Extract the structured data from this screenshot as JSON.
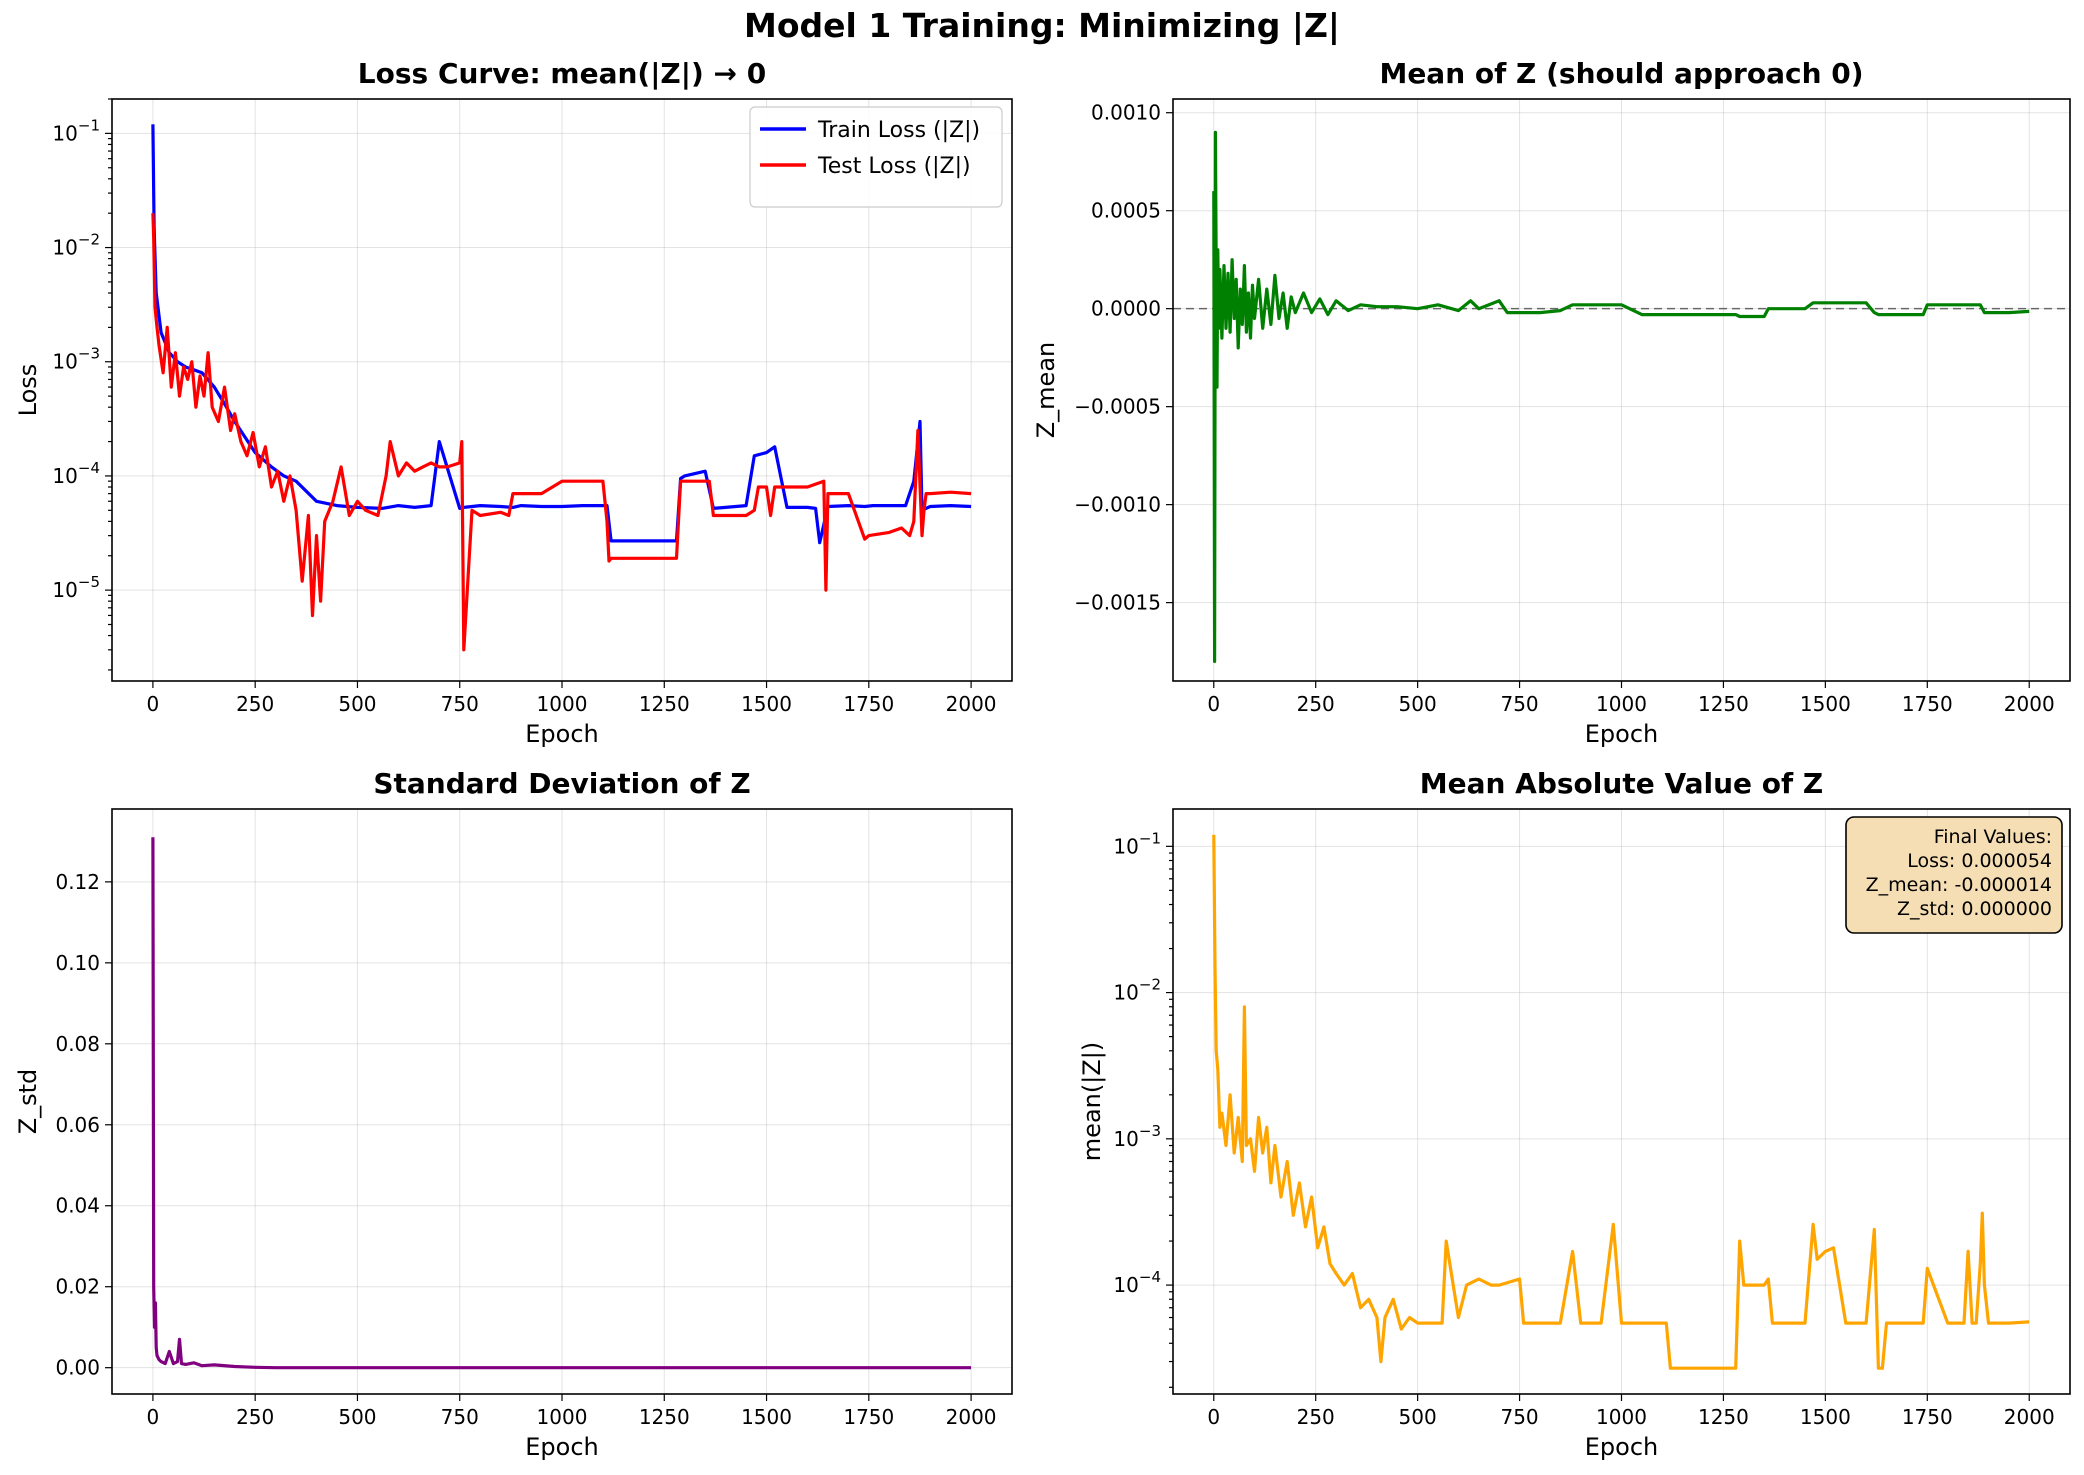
{
  "figure": {
    "title": "Model 1 Training: Minimizing |Z|"
  },
  "chart_data": [
    {
      "id": "loss",
      "type": "line",
      "title": "Loss Curve: mean(|Z|) → 0",
      "xlabel": "Epoch",
      "ylabel": "Loss",
      "yscale": "log",
      "xlim": [
        -100,
        2100
      ],
      "ylim": [
        1.6e-06,
        0.2
      ],
      "xticks": [
        0,
        250,
        500,
        750,
        1000,
        1250,
        1500,
        1750,
        2000
      ],
      "yticks": [
        1e-05,
        0.0001,
        0.001,
        0.01,
        0.1
      ],
      "ytick_labels": [
        [
          "10",
          "−5"
        ],
        [
          "10",
          "−4"
        ],
        [
          "10",
          "−3"
        ],
        [
          "10",
          "−2"
        ],
        [
          "10",
          "−1"
        ]
      ],
      "grid": true,
      "legend": "upper right",
      "series": [
        {
          "name": "Train Loss (|Z|)",
          "color": "#0000ff",
          "x": [
            0,
            3,
            8,
            20,
            40,
            60,
            80,
            100,
            120,
            150,
            180,
            200,
            250,
            290,
            320,
            350,
            400,
            450,
            500,
            560,
            600,
            640,
            680,
            700,
            750,
            760,
            800,
            850,
            880,
            900,
            950,
            1000,
            1050,
            1110,
            1120,
            1200,
            1280,
            1290,
            1300,
            1350,
            1370,
            1400,
            1450,
            1470,
            1500,
            1520,
            1550,
            1600,
            1620,
            1630,
            1650,
            1700,
            1740,
            1760,
            1800,
            1840,
            1860,
            1875,
            1880,
            1900,
            1950,
            2000
          ],
          "y": [
            0.12,
            0.015,
            0.004,
            0.0018,
            0.0012,
            0.001,
            0.0009,
            0.00085,
            0.0008,
            0.0006,
            0.0004,
            0.0003,
            0.00016,
            0.00012,
            0.0001,
            9e-05,
            6e-05,
            5.5e-05,
            5.3e-05,
            5.2e-05,
            5.5e-05,
            5.3e-05,
            5.5e-05,
            0.0002,
            5.2e-05,
            5.3e-05,
            5.5e-05,
            5.4e-05,
            5.3e-05,
            5.5e-05,
            5.4e-05,
            5.4e-05,
            5.5e-05,
            5.5e-05,
            2.7e-05,
            2.7e-05,
            2.7e-05,
            9.5e-05,
            0.0001,
            0.00011,
            5.2e-05,
            5.3e-05,
            5.5e-05,
            0.00015,
            0.00016,
            0.00018,
            5.3e-05,
            5.3e-05,
            5.2e-05,
            2.6e-05,
            5.4e-05,
            5.5e-05,
            5.4e-05,
            5.5e-05,
            5.5e-05,
            5.5e-05,
            9e-05,
            0.0003,
            5e-05,
            5.4e-05,
            5.5e-05,
            5.4e-05
          ]
        },
        {
          "name": "Test Loss (|Z|)",
          "color": "#ff0000",
          "x": [
            0,
            2,
            5,
            10,
            15,
            25,
            35,
            45,
            55,
            65,
            75,
            85,
            95,
            105,
            115,
            125,
            135,
            145,
            160,
            175,
            190,
            200,
            215,
            230,
            245,
            260,
            275,
            290,
            305,
            320,
            335,
            350,
            365,
            380,
            390,
            400,
            410,
            420,
            440,
            460,
            480,
            500,
            520,
            550,
            570,
            580,
            600,
            620,
            640,
            660,
            680,
            700,
            720,
            750,
            755,
            760,
            780,
            800,
            850,
            870,
            880,
            890,
            950,
            1000,
            1050,
            1100,
            1110,
            1115,
            1120,
            1200,
            1280,
            1290,
            1300,
            1350,
            1360,
            1370,
            1400,
            1450,
            1470,
            1480,
            1500,
            1510,
            1520,
            1600,
            1640,
            1645,
            1650,
            1700,
            1740,
            1750,
            1800,
            1830,
            1850,
            1860,
            1870,
            1880,
            1885,
            1890,
            1900,
            1950,
            2000
          ],
          "y": [
            0.02,
            0.012,
            0.003,
            0.002,
            0.0014,
            0.0008,
            0.002,
            0.0006,
            0.0012,
            0.0005,
            0.0009,
            0.0007,
            0.001,
            0.0004,
            0.00075,
            0.0005,
            0.0012,
            0.0004,
            0.0003,
            0.0006,
            0.00025,
            0.00035,
            0.0002,
            0.00015,
            0.00024,
            0.00012,
            0.00018,
            8e-05,
            0.00011,
            6e-05,
            0.0001,
            5e-05,
            1.2e-05,
            4.5e-05,
            6e-06,
            3e-05,
            8e-06,
            4e-05,
            6e-05,
            0.00012,
            4.5e-05,
            6e-05,
            5e-05,
            4.5e-05,
            0.0001,
            0.0002,
            0.0001,
            0.00013,
            0.00011,
            0.00012,
            0.00013,
            0.00012,
            0.00012,
            0.00013,
            0.0002,
            3e-06,
            5e-05,
            4.5e-05,
            4.8e-05,
            4.5e-05,
            7e-05,
            7e-05,
            7e-05,
            9e-05,
            9e-05,
            9e-05,
            4e-05,
            1.8e-05,
            1.9e-05,
            1.9e-05,
            1.9e-05,
            9e-05,
            9e-05,
            9e-05,
            9e-05,
            4.5e-05,
            4.5e-05,
            4.5e-05,
            5e-05,
            8e-05,
            8e-05,
            4.5e-05,
            8e-05,
            8e-05,
            9e-05,
            1e-05,
            7e-05,
            7e-05,
            2.8e-05,
            3e-05,
            3.2e-05,
            3.5e-05,
            3e-05,
            4e-05,
            0.00025,
            3e-05,
            5e-05,
            7e-05,
            7e-05,
            7.2e-05,
            7e-05
          ]
        }
      ]
    },
    {
      "id": "zmean",
      "type": "line",
      "title": "Mean of Z (should approach 0)",
      "xlabel": "Epoch",
      "ylabel": "Z_mean",
      "yscale": "linear",
      "xlim": [
        -100,
        2100
      ],
      "ylim": [
        -0.0019,
        0.00107
      ],
      "xticks": [
        0,
        250,
        500,
        750,
        1000,
        1250,
        1500,
        1750,
        2000
      ],
      "yticks": [
        -0.0015,
        -0.001,
        -0.0005,
        0.0,
        0.0005,
        0.001
      ],
      "ytick_labels": [
        "−0.0015",
        "−0.0010",
        "−0.0005",
        "0.0000",
        "0.0005",
        "0.0010"
      ],
      "grid": true,
      "hline": 0.0,
      "series": [
        {
          "name": "",
          "color": "#008000",
          "x": [
            0,
            2,
            4,
            6,
            8,
            10,
            12,
            15,
            20,
            25,
            30,
            35,
            40,
            45,
            50,
            55,
            60,
            65,
            70,
            75,
            80,
            85,
            90,
            95,
            100,
            110,
            120,
            130,
            140,
            150,
            160,
            170,
            180,
            190,
            200,
            220,
            240,
            260,
            280,
            300,
            330,
            360,
            400,
            450,
            500,
            550,
            600,
            630,
            650,
            700,
            720,
            750,
            800,
            850,
            880,
            900,
            950,
            1000,
            1050,
            1100,
            1110,
            1200,
            1280,
            1290,
            1300,
            1350,
            1360,
            1400,
            1450,
            1470,
            1500,
            1550,
            1600,
            1620,
            1630,
            1700,
            1740,
            1750,
            1800,
            1850,
            1880,
            1890,
            1900,
            1950,
            2000
          ],
          "y": [
            0.0006,
            -0.0018,
            0.0009,
            0.0002,
            -0.0004,
            0.0003,
            -0.0001,
            0.0002,
            -0.00015,
            0.00022,
            -0.0001,
            0.00018,
            -0.00012,
            0.00025,
            -5e-05,
            0.00015,
            -0.0002,
            0.0001,
            -8e-05,
            0.00022,
            -0.00012,
            8e-05,
            -0.00015,
            0.00012,
            -5e-05,
            0.00015,
            -0.0001,
            0.0001,
            -8e-05,
            0.00017,
            -5e-05,
            8e-05,
            -0.0001,
            6e-05,
            -2e-05,
            8e-05,
            -2e-05,
            5e-05,
            -3e-05,
            4e-05,
            -1e-05,
            2e-05,
            1e-05,
            1e-05,
            0.0,
            2e-05,
            -1e-05,
            4e-05,
            0.0,
            4e-05,
            -2e-05,
            -2e-05,
            -2e-05,
            -1e-05,
            2e-05,
            2e-05,
            2e-05,
            2e-05,
            -3e-05,
            -3e-05,
            -3e-05,
            -3e-05,
            -3e-05,
            -4e-05,
            -4e-05,
            -4e-05,
            0.0,
            0.0,
            0.0,
            3e-05,
            3e-05,
            3e-05,
            3e-05,
            -2e-05,
            -3e-05,
            -3e-05,
            -3e-05,
            2e-05,
            2e-05,
            2e-05,
            2e-05,
            -2e-05,
            -2e-05,
            -2e-05,
            -1.4e-05
          ]
        }
      ]
    },
    {
      "id": "zstd",
      "type": "line",
      "title": "Standard Deviation of Z",
      "xlabel": "Epoch",
      "ylabel": "Z_std",
      "yscale": "linear",
      "xlim": [
        -100,
        2100
      ],
      "ylim": [
        -0.0065,
        0.138
      ],
      "xticks": [
        0,
        250,
        500,
        750,
        1000,
        1250,
        1500,
        1750,
        2000
      ],
      "yticks": [
        0.0,
        0.02,
        0.04,
        0.06,
        0.08,
        0.1,
        0.12
      ],
      "ytick_labels": [
        "0.00",
        "0.02",
        "0.04",
        "0.06",
        "0.08",
        "0.10",
        "0.12"
      ],
      "grid": true,
      "series": [
        {
          "name": "",
          "color": "#800080",
          "x": [
            0,
            2,
            4,
            6,
            8,
            10,
            15,
            20,
            30,
            40,
            50,
            60,
            65,
            70,
            80,
            100,
            120,
            150,
            200,
            250,
            300,
            2000
          ],
          "y": [
            0.131,
            0.02,
            0.01,
            0.016,
            0.005,
            0.003,
            0.002,
            0.0015,
            0.001,
            0.004,
            0.001,
            0.0015,
            0.007,
            0.001,
            0.0008,
            0.0012,
            0.0005,
            0.0007,
            0.0003,
            0.0001,
            0.0,
            0.0
          ]
        }
      ]
    },
    {
      "id": "zabs",
      "type": "line",
      "title": "Mean Absolute Value of Z",
      "xlabel": "Epoch",
      "ylabel": "mean(|Z|)",
      "yscale": "log",
      "xlim": [
        -100,
        2100
      ],
      "ylim": [
        1.8e-05,
        0.18
      ],
      "xticks": [
        0,
        250,
        500,
        750,
        1000,
        1250,
        1500,
        1750,
        2000
      ],
      "yticks": [
        0.0001,
        0.001,
        0.01,
        0.1
      ],
      "ytick_labels": [
        [
          "10",
          "−4"
        ],
        [
          "10",
          "−3"
        ],
        [
          "10",
          "−2"
        ],
        [
          "10",
          "−1"
        ]
      ],
      "grid": true,
      "annotation": {
        "lines": [
          "Final Values:",
          "Loss: 0.000054",
          "Z_mean: -0.000014",
          "Z_std: 0.000000"
        ],
        "background": "#f5deb3"
      },
      "series": [
        {
          "name": "",
          "color": "#ffa500",
          "x": [
            0,
            3,
            6,
            10,
            15,
            20,
            30,
            40,
            50,
            60,
            70,
            75,
            80,
            90,
            100,
            110,
            120,
            130,
            140,
            150,
            165,
            180,
            195,
            210,
            225,
            240,
            255,
            270,
            285,
            300,
            320,
            340,
            360,
            380,
            400,
            410,
            420,
            440,
            460,
            480,
            500,
            560,
            570,
            600,
            620,
            650,
            680,
            700,
            750,
            760,
            800,
            850,
            880,
            900,
            950,
            980,
            1000,
            1050,
            1100,
            1110,
            1120,
            1200,
            1280,
            1290,
            1300,
            1350,
            1360,
            1370,
            1400,
            1450,
            1470,
            1480,
            1500,
            1520,
            1550,
            1600,
            1620,
            1630,
            1640,
            1650,
            1700,
            1740,
            1750,
            1800,
            1840,
            1850,
            1860,
            1870,
            1880,
            1885,
            1890,
            1900,
            1950,
            2000
          ],
          "y": [
            0.12,
            0.015,
            0.004,
            0.003,
            0.0012,
            0.0015,
            0.0009,
            0.002,
            0.0008,
            0.0014,
            0.0007,
            0.008,
            0.0009,
            0.001,
            0.0006,
            0.0014,
            0.0008,
            0.0012,
            0.0005,
            0.0009,
            0.0004,
            0.0007,
            0.0003,
            0.0005,
            0.00025,
            0.0004,
            0.00018,
            0.00025,
            0.00014,
            0.00012,
            0.0001,
            0.00012,
            7e-05,
            8e-05,
            6e-05,
            3e-05,
            6e-05,
            8e-05,
            5e-05,
            6e-05,
            5.5e-05,
            5.5e-05,
            0.0002,
            6e-05,
            0.0001,
            0.00011,
            0.0001,
            0.0001,
            0.00011,
            5.5e-05,
            5.5e-05,
            5.5e-05,
            0.00017,
            5.5e-05,
            5.5e-05,
            0.00026,
            5.5e-05,
            5.5e-05,
            5.5e-05,
            5.5e-05,
            2.7e-05,
            2.7e-05,
            2.7e-05,
            0.0002,
            0.0001,
            0.0001,
            0.00011,
            5.5e-05,
            5.5e-05,
            5.5e-05,
            0.00026,
            0.00015,
            0.00017,
            0.00018,
            5.5e-05,
            5.5e-05,
            0.00024,
            2.7e-05,
            2.7e-05,
            5.5e-05,
            5.5e-05,
            5.5e-05,
            0.00013,
            5.5e-05,
            5.5e-05,
            0.00017,
            5.5e-05,
            5.5e-05,
            0.00014,
            0.00031,
            0.0001,
            5.5e-05,
            5.5e-05,
            5.6e-05
          ]
        }
      ]
    }
  ]
}
